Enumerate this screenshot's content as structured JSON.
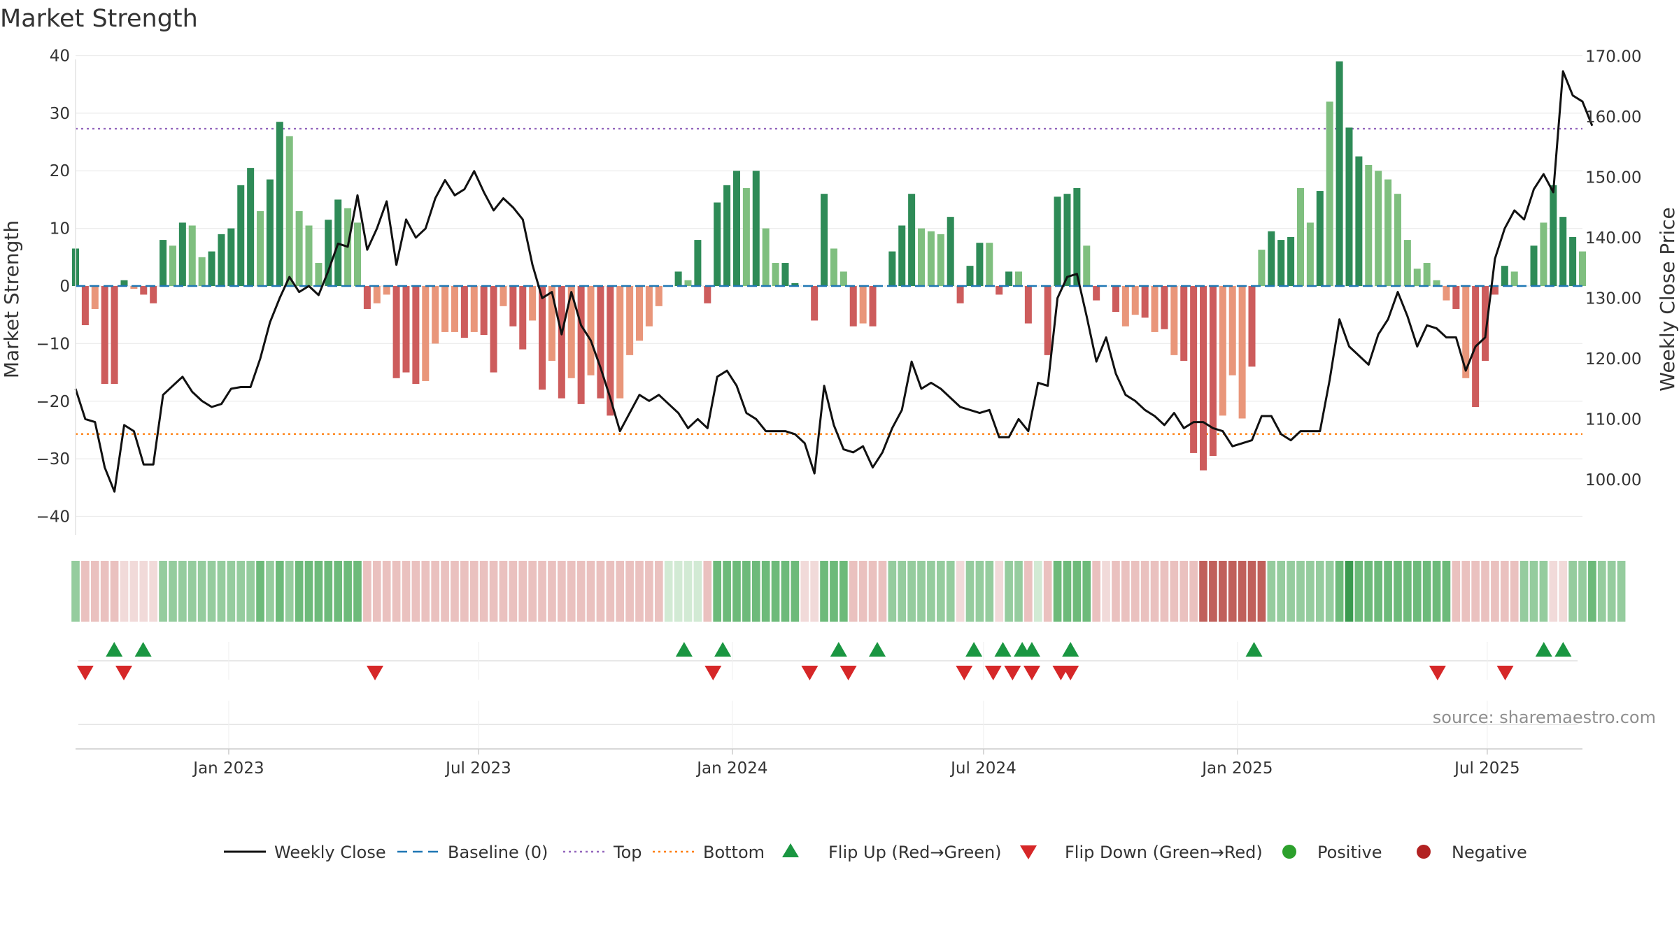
{
  "chart_data": {
    "type": "bar",
    "title": "Market Strength",
    "ylabel": "Market Strength",
    "y2label": "Weekly Close Price",
    "ylim": [
      -42,
      42
    ],
    "y2lim": [
      92.0,
      172.0
    ],
    "yticks": [
      40,
      30,
      20,
      10,
      0,
      -10,
      -20,
      -30,
      -40
    ],
    "yticklabels": [
      "40",
      "30",
      "20",
      "10",
      "0",
      "−10",
      "−20",
      "−30",
      "−40"
    ],
    "y2ticks": [
      170,
      160,
      150,
      140,
      130,
      120,
      110,
      100
    ],
    "y2ticklabels": [
      "170.00",
      "160.00",
      "150.00",
      "140.00",
      "130.00",
      "120.00",
      "110.00",
      "100.00"
    ],
    "x_start": "2022-09-12",
    "x_step_days": 7,
    "x_end": "2025-09-08",
    "xticks": [
      "2023-01-01",
      "2023-07-01",
      "2024-01-01",
      "2024-07-01",
      "2025-01-01",
      "2025-07-01"
    ],
    "xticklabels": [
      "Jan 2023",
      "Jul 2023",
      "Jan 2024",
      "Jul 2024",
      "Jan 2025",
      "Jul 2025"
    ],
    "top_line": 27.3,
    "bottom_line": -25.7,
    "baseline": 0,
    "strength": [
      6.5,
      -6.8,
      -4.0,
      -17.0,
      -17.0,
      1.0,
      -0.5,
      -1.5,
      -3.0,
      8.0,
      7.0,
      11.0,
      10.5,
      5.0,
      6.0,
      9.0,
      10.0,
      17.5,
      20.5,
      13.0,
      18.5,
      28.5,
      26.0,
      13.0,
      10.5,
      4.0,
      11.5,
      15.0,
      13.5,
      11.0,
      -4.0,
      -3.0,
      -1.5,
      -16.0,
      -15.0,
      -17.0,
      -16.5,
      -10.0,
      -8.0,
      -8.0,
      -9.0,
      -8.0,
      -8.5,
      -15.0,
      -3.5,
      -7.0,
      -11.0,
      -6.0,
      -18.0,
      -13.0,
      -19.5,
      -16.0,
      -20.5,
      -15.5,
      -19.5,
      -22.5,
      -19.5,
      -12.0,
      -9.5,
      -7.0,
      -3.5,
      0.0,
      2.5,
      1.0,
      8.0,
      -3.0,
      14.5,
      17.5,
      20.0,
      17.0,
      20.0,
      10.0,
      4.0,
      4.0,
      0.5,
      0.0,
      -6.0,
      16.0,
      6.5,
      2.5,
      -7.0,
      -6.5,
      -7.0,
      0.0,
      6.0,
      10.5,
      16.0,
      10.0,
      9.5,
      9.0,
      12.0,
      -3.0,
      3.5,
      7.5,
      7.5,
      -1.5,
      2.5,
      2.5,
      -6.5,
      0.0,
      -12.0,
      15.5,
      16.0,
      17.0,
      7.0,
      -2.5,
      0.0,
      -4.5,
      -7.0,
      -5.0,
      -5.5,
      -8.0,
      -7.5,
      -12.0,
      -13.0,
      -29.0,
      -32.0,
      -29.5,
      -22.5,
      -15.5,
      -23.0,
      -14.0,
      6.3,
      9.5,
      8.0,
      8.5,
      17.0,
      11.0,
      16.5,
      32.0,
      39.0,
      27.5,
      22.5,
      21.0,
      20.0,
      18.5,
      16.0,
      8.0,
      3.0,
      4.0,
      1.0,
      -2.5,
      -4.0,
      -16.0,
      -21.0,
      -13.0,
      -1.5,
      3.5,
      2.5,
      0.0,
      7.0,
      11.0,
      17.5,
      12.0,
      8.5,
      6.0
    ],
    "strength_shade": [
      0,
      0,
      1,
      0,
      0,
      0,
      1,
      0,
      0,
      0,
      1,
      0,
      1,
      1,
      0,
      0,
      0,
      0,
      0,
      1,
      0,
      0,
      1,
      1,
      1,
      1,
      0,
      0,
      1,
      1,
      0,
      1,
      1,
      0,
      0,
      0,
      1,
      1,
      1,
      1,
      0,
      1,
      0,
      0,
      1,
      0,
      0,
      1,
      0,
      1,
      0,
      1,
      0,
      1,
      0,
      0,
      1,
      1,
      1,
      1,
      1,
      0,
      0,
      1,
      0,
      0,
      0,
      0,
      0,
      1,
      0,
      1,
      1,
      0,
      0,
      0,
      0,
      0,
      1,
      1,
      0,
      1,
      0,
      0,
      0,
      0,
      0,
      1,
      1,
      1,
      0,
      0,
      0,
      0,
      1,
      0,
      0,
      1,
      0,
      0,
      0,
      0,
      0,
      0,
      1,
      0,
      0,
      0,
      1,
      1,
      0,
      1,
      0,
      1,
      0,
      0,
      0,
      0,
      1,
      1,
      1,
      0,
      1,
      0,
      0,
      0,
      1,
      1,
      0,
      1,
      0,
      0,
      0,
      1,
      1,
      1,
      1,
      1,
      1,
      1,
      1,
      1,
      0,
      1,
      0,
      0,
      0,
      0,
      1,
      1,
      0,
      1,
      0,
      0,
      0,
      1,
      1,
      1
    ],
    "weekly_close": [
      115.0,
      110.0,
      109.5,
      102.0,
      98.0,
      109.0,
      108.0,
      102.5,
      102.5,
      114.0,
      115.5,
      117.0,
      114.5,
      113.0,
      112.0,
      112.5,
      115.0,
      115.3,
      115.3,
      120.0,
      126.0,
      130.0,
      133.5,
      131.0,
      132.0,
      130.5,
      134.5,
      139.0,
      138.5,
      147.0,
      138.0,
      141.5,
      146.0,
      135.5,
      143.0,
      140.0,
      141.5,
      146.5,
      149.5,
      147.0,
      148.0,
      151.0,
      147.5,
      144.5,
      146.5,
      145.0,
      143.0,
      135.5,
      130.0,
      131.0,
      124.0,
      131.0,
      125.5,
      123.0,
      118.5,
      113.5,
      108.0,
      111.0,
      114.0,
      113.0,
      114.0,
      112.5,
      111.0,
      108.5,
      110.0,
      108.5,
      117.0,
      118.0,
      115.5,
      111.0,
      110.0,
      108.0,
      108.0,
      108.0,
      107.5,
      106.0,
      101.0,
      115.5,
      109.0,
      105.0,
      104.5,
      105.5,
      102.0,
      104.5,
      108.5,
      111.5,
      119.5,
      115.0,
      116.0,
      115.0,
      113.5,
      112.0,
      111.5,
      111.0,
      111.5,
      107.0,
      107.0,
      110.0,
      108.0,
      116.0,
      115.5,
      130.0,
      133.5,
      134.0,
      127.0,
      119.5,
      123.5,
      117.5,
      114.0,
      113.0,
      111.5,
      110.5,
      109.0,
      111.0,
      108.5,
      109.5,
      109.5,
      108.5,
      108.0,
      105.5,
      106.0,
      106.5,
      110.5,
      110.5,
      107.5,
      106.5,
      108.0,
      108.0,
      108.0,
      116.5,
      126.5,
      122.0,
      120.5,
      119.0,
      124.0,
      126.5,
      131.0,
      127.0,
      122.0,
      125.5,
      125.0,
      123.5,
      123.5,
      118.0,
      122.0,
      123.5,
      136.5,
      141.5,
      144.5,
      143.0,
      148.0,
      150.5,
      147.5,
      167.5,
      163.5,
      162.5,
      158.5
    ],
    "heat_levels": [
      2,
      3,
      3,
      3,
      3,
      4,
      4,
      4,
      4,
      2,
      2,
      2,
      2,
      2,
      2,
      2,
      2,
      2,
      2,
      1,
      2,
      1,
      2,
      1,
      1,
      1,
      1,
      1,
      1,
      1,
      3,
      3,
      3,
      3,
      3,
      3,
      3,
      3,
      3,
      3,
      3,
      3,
      3,
      3,
      3,
      3,
      3,
      3,
      3,
      3,
      3,
      3,
      3,
      3,
      3,
      3,
      3,
      3,
      3,
      3,
      3,
      4,
      4,
      4,
      4,
      3,
      1,
      1,
      1,
      1,
      1,
      1,
      1,
      1,
      1,
      4,
      4,
      1,
      1,
      1,
      3,
      3,
      3,
      3,
      2,
      2,
      2,
      2,
      2,
      2,
      2,
      4,
      2,
      2,
      2,
      4,
      2,
      2,
      3,
      4,
      3,
      1,
      1,
      1,
      1,
      3,
      4,
      3,
      3,
      3,
      3,
      3,
      3,
      3,
      3,
      3,
      0,
      0,
      0,
      0,
      0,
      0,
      0,
      2,
      2,
      2,
      2,
      2,
      2,
      2,
      1,
      0,
      1,
      1,
      1,
      1,
      1,
      1,
      1,
      1,
      1,
      1,
      3,
      3,
      3,
      3,
      3,
      3,
      3,
      2,
      2,
      2,
      4,
      4,
      2,
      2,
      1,
      2,
      2,
      2
    ],
    "heat_sign": [
      1,
      -1,
      -1,
      -1,
      -1,
      -1,
      -1,
      -1,
      -1,
      1,
      1,
      1,
      1,
      1,
      1,
      1,
      1,
      1,
      1,
      1,
      1,
      1,
      1,
      1,
      1,
      1,
      1,
      1,
      1,
      1,
      -1,
      -1,
      -1,
      -1,
      -1,
      -1,
      -1,
      -1,
      -1,
      -1,
      -1,
      -1,
      -1,
      -1,
      -1,
      -1,
      -1,
      -1,
      -1,
      -1,
      -1,
      -1,
      -1,
      -1,
      -1,
      -1,
      -1,
      -1,
      -1,
      -1,
      -1,
      1,
      1,
      1,
      1,
      -1,
      1,
      1,
      1,
      1,
      1,
      1,
      1,
      1,
      1,
      -1,
      -1,
      1,
      1,
      1,
      -1,
      -1,
      -1,
      -1,
      1,
      1,
      1,
      1,
      1,
      1,
      1,
      -1,
      1,
      1,
      1,
      -1,
      1,
      1,
      -1,
      1,
      -1,
      1,
      1,
      1,
      1,
      -1,
      -1,
      -1,
      -1,
      -1,
      -1,
      -1,
      -1,
      -1,
      -1,
      -1,
      -1,
      -1,
      -1,
      -1,
      -1,
      -1,
      -1,
      1,
      1,
      1,
      1,
      1,
      1,
      1,
      1,
      1,
      1,
      1,
      1,
      1,
      1,
      1,
      1,
      1,
      1,
      1,
      -1,
      -1,
      -1,
      -1,
      -1,
      -1,
      -1,
      1,
      1,
      1,
      -1,
      -1,
      1,
      1,
      1,
      1,
      1,
      1
    ],
    "flip_up": [
      "2022-10-10",
      "2022-10-31",
      "2023-11-27",
      "2023-12-25",
      "2024-03-18",
      "2024-04-15",
      "2024-06-24",
      "2024-07-15",
      "2024-07-29",
      "2024-08-05",
      "2024-09-02",
      "2025-01-13",
      "2025-08-11",
      "2025-08-25"
    ],
    "flip_down": [
      "2022-09-19",
      "2022-10-17",
      "2023-04-17",
      "2023-12-18",
      "2024-02-26",
      "2024-03-25",
      "2024-06-17",
      "2024-07-08",
      "2024-07-22",
      "2024-08-05",
      "2024-08-26",
      "2024-09-02",
      "2025-05-26",
      "2025-07-14"
    ],
    "colors": {
      "pos_strong": "#2e8b57",
      "pos_weak": "#7fbf7f",
      "neg_strong": "#cd5c5c",
      "neg_weak": "#e9967a",
      "line": "#111111",
      "baseline": "#1f77b4",
      "top": "#9467bd",
      "bottom": "#ff7f0e",
      "flip_up": "#1a9641",
      "flip_down": "#d62728",
      "positive_marker": "#2ca02c",
      "negative_marker": "#b22222",
      "heat_pos": [
        "#3a9a4f",
        "#6dba7a",
        "#95cc9e",
        "#b5dcba",
        "#d2ead4"
      ],
      "heat_neg": [
        "#c0605b",
        "#d58f8b",
        "#e1aaa7",
        "#eac1bf",
        "#f1dad9"
      ]
    },
    "legend": [
      {
        "key": "weekly_close",
        "label": "Weekly Close",
        "symbol": "line"
      },
      {
        "key": "baseline",
        "label": "Baseline (0)",
        "symbol": "dash"
      },
      {
        "key": "top",
        "label": "Top",
        "symbol": "dot"
      },
      {
        "key": "bottom",
        "label": "Bottom",
        "symbol": "dot"
      },
      {
        "key": "flip_up",
        "label": "Flip Up (Red→Green)",
        "symbol": "triangle-up"
      },
      {
        "key": "flip_down",
        "label": "Flip Down (Green→Red)",
        "symbol": "triangle-down"
      },
      {
        "key": "positive",
        "label": "Positive",
        "symbol": "circle"
      },
      {
        "key": "negative",
        "label": "Negative",
        "symbol": "circle"
      }
    ],
    "legend_placement": "bottom-center",
    "source": "source: sharemaestro.com",
    "grid": true
  }
}
